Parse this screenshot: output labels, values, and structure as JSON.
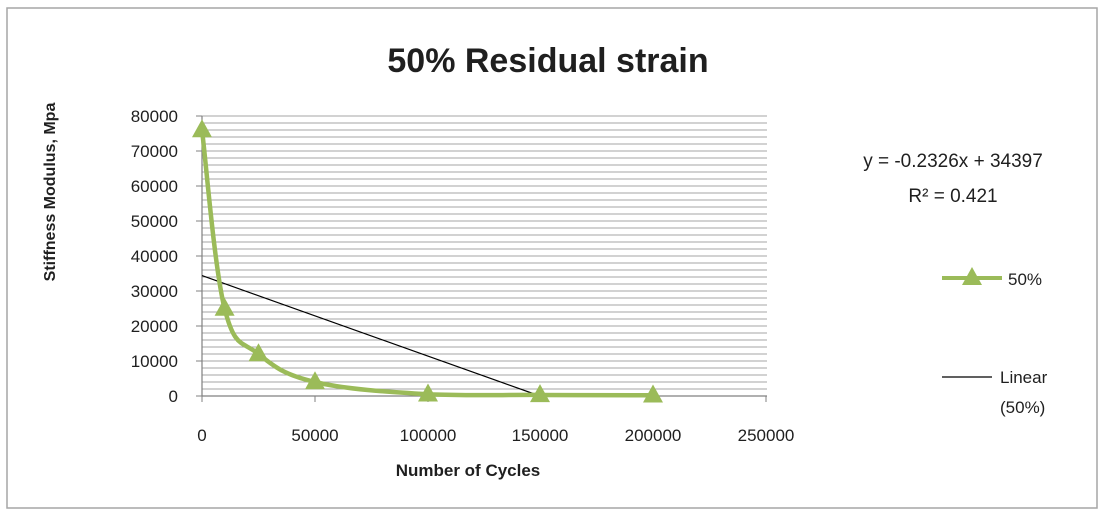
{
  "chart_data": {
    "type": "line",
    "title": "50% Residual strain",
    "xlabel": "Number of Cycles",
    "ylabel": "Stiffness Modulus, Mpa",
    "x_ticks": [
      "0",
      "50000",
      "100000",
      "150000",
      "200000",
      "250000"
    ],
    "y_ticks": [
      "0",
      "10000",
      "20000",
      "30000",
      "40000",
      "50000",
      "60000",
      "70000",
      "80000"
    ],
    "ylim": [
      0,
      80000
    ],
    "grid": true,
    "legend_position": "right",
    "series": [
      {
        "name": "50%",
        "color": "#9bbb59",
        "marker": "triangle",
        "x": [
          0,
          10000,
          25000,
          50000,
          100000,
          150000,
          200000
        ],
        "values": [
          76000,
          25000,
          12000,
          4000,
          500,
          300,
          200
        ]
      }
    ],
    "trendline": {
      "name": "Linear (50%)",
      "color": "#000000",
      "x": [
        0,
        150000
      ],
      "values": [
        34397,
        -494
      ],
      "equation": "y = -0.2326x + 34397",
      "r_squared": "R² = 0.421"
    }
  }
}
